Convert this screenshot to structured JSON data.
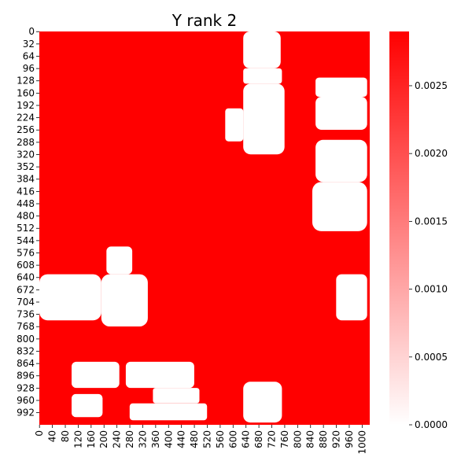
{
  "chart_data": {
    "type": "heatmap",
    "title": "Y rank 2",
    "xlabel": "",
    "ylabel": "",
    "matrix_size": 1024,
    "x_range": [
      0,
      1024
    ],
    "y_range": [
      0,
      1024
    ],
    "x_ticks": [
      "0",
      "40",
      "80",
      "120",
      "160",
      "200",
      "240",
      "280",
      "320",
      "360",
      "400",
      "440",
      "480",
      "520",
      "560",
      "600",
      "640",
      "680",
      "720",
      "760",
      "800",
      "840",
      "880",
      "920",
      "960",
      "1000"
    ],
    "y_ticks": [
      "0",
      "32",
      "64",
      "96",
      "128",
      "160",
      "192",
      "224",
      "256",
      "288",
      "320",
      "352",
      "384",
      "416",
      "448",
      "480",
      "512",
      "544",
      "576",
      "608",
      "640",
      "672",
      "704",
      "736",
      "768",
      "800",
      "832",
      "864",
      "896",
      "928",
      "960",
      "992"
    ],
    "colorbar": {
      "min": 0.0,
      "max": 0.0029,
      "ticks": [
        "0.0000",
        "0.0005",
        "0.0010",
        "0.0015",
        "0.0020",
        "0.0025"
      ],
      "tick_values": [
        0.0,
        0.0005,
        0.001,
        0.0015,
        0.002,
        0.0025
      ],
      "colormap": [
        "#ffffff",
        "#ff0000"
      ]
    },
    "background_value": 0.0029,
    "low_value_regions": [
      {
        "x": [
          632,
          748
        ],
        "y": [
          0,
          96
        ],
        "value": 0.0
      },
      {
        "x": [
          632,
          752
        ],
        "y": [
          96,
          136
        ],
        "value": 0.0
      },
      {
        "x": [
          632,
          760
        ],
        "y": [
          136,
          320
        ],
        "value": 0.0
      },
      {
        "x": [
          576,
          632
        ],
        "y": [
          200,
          286
        ],
        "value": 0.0
      },
      {
        "x": [
          856,
          1016
        ],
        "y": [
          120,
          170
        ],
        "value": 0.0
      },
      {
        "x": [
          856,
          1016
        ],
        "y": [
          170,
          256
        ],
        "value": 0.0
      },
      {
        "x": [
          856,
          1016
        ],
        "y": [
          282,
          392
        ],
        "value": 0.0
      },
      {
        "x": [
          846,
          1016
        ],
        "y": [
          392,
          520
        ],
        "value": 0.0
      },
      {
        "x": [
          208,
          288
        ],
        "y": [
          560,
          632
        ],
        "value": 0.0
      },
      {
        "x": [
          0,
          192
        ],
        "y": [
          632,
          752
        ],
        "value": 0.0
      },
      {
        "x": [
          192,
          336
        ],
        "y": [
          632,
          768
        ],
        "value": 0.0
      },
      {
        "x": [
          920,
          1016
        ],
        "y": [
          632,
          752
        ],
        "value": 0.0
      },
      {
        "x": [
          100,
          248
        ],
        "y": [
          860,
          928
        ],
        "value": 0.0
      },
      {
        "x": [
          268,
          480
        ],
        "y": [
          860,
          928
        ],
        "value": 0.0
      },
      {
        "x": [
          352,
          496
        ],
        "y": [
          928,
          968
        ],
        "value": 0.0
      },
      {
        "x": [
          100,
          196
        ],
        "y": [
          944,
          1004
        ],
        "value": 0.0
      },
      {
        "x": [
          280,
          520
        ],
        "y": [
          968,
          1012
        ],
        "value": 0.0
      },
      {
        "x": [
          632,
          752
        ],
        "y": [
          912,
          1018
        ],
        "value": 0.0
      }
    ],
    "grid": false,
    "legend": "colorbar-right"
  }
}
